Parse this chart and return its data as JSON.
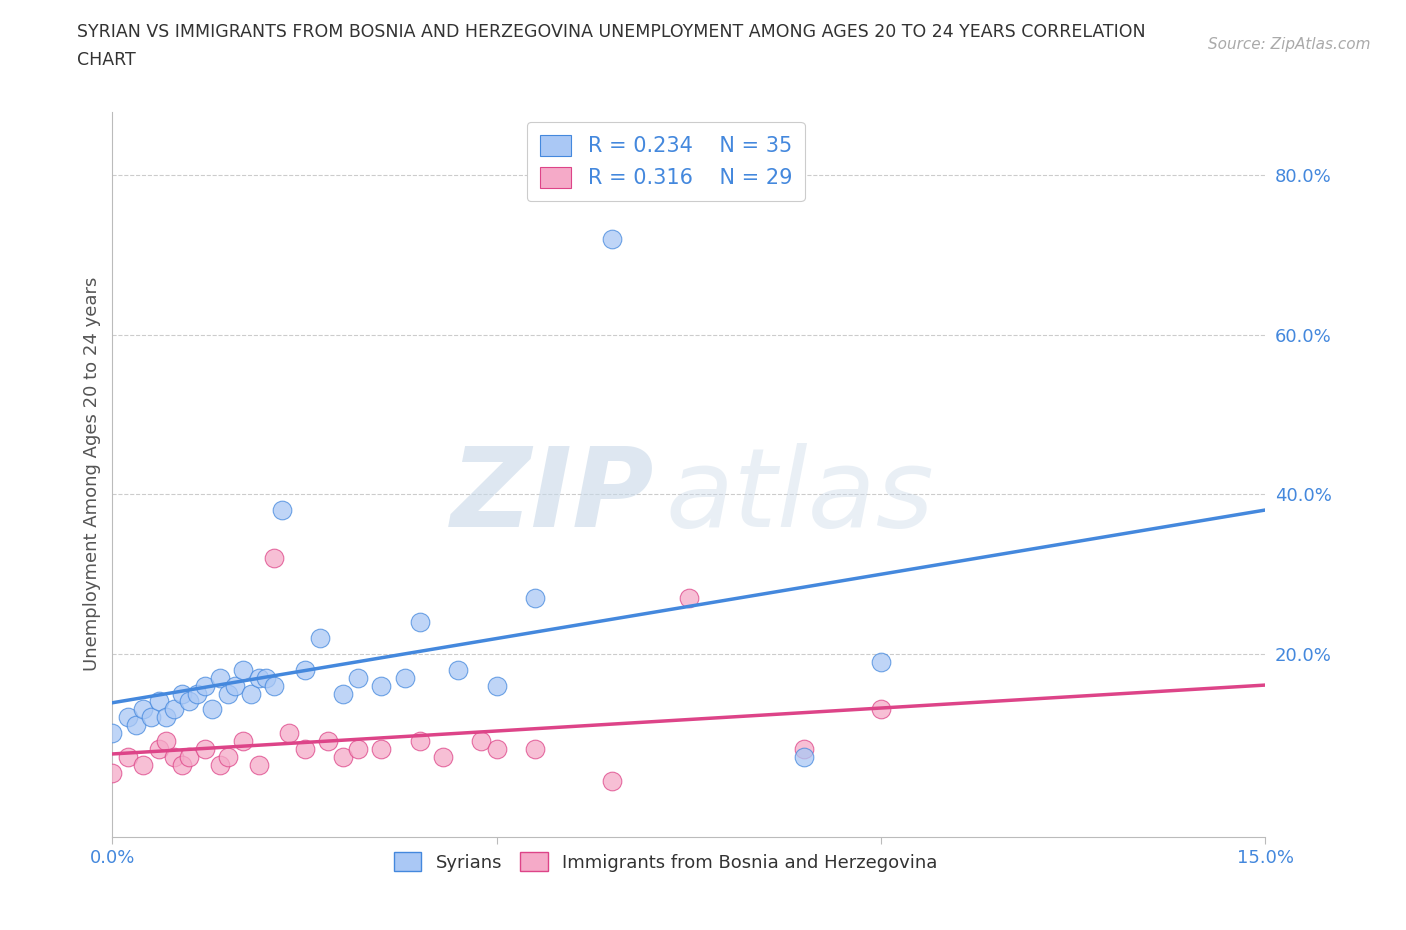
{
  "title_line1": "SYRIAN VS IMMIGRANTS FROM BOSNIA AND HERZEGOVINA UNEMPLOYMENT AMONG AGES 20 TO 24 YEARS CORRELATION",
  "title_line2": "CHART",
  "source_text": "Source: ZipAtlas.com",
  "ylabel": "Unemployment Among Ages 20 to 24 years",
  "xlim": [
    0.0,
    0.15
  ],
  "ylim": [
    -0.03,
    0.88
  ],
  "xticks": [
    0.0,
    0.05,
    0.1,
    0.15
  ],
  "xtick_labels": [
    "0.0%",
    "",
    "",
    "15.0%"
  ],
  "yticks_right": [
    0.0,
    0.2,
    0.4,
    0.6,
    0.8
  ],
  "ytick_labels_right": [
    "",
    "20.0%",
    "40.0%",
    "60.0%",
    "80.0%"
  ],
  "color_syrian": "#aac8f5",
  "color_bosnia": "#f5aac8",
  "line_color_syrian": "#4488dd",
  "line_color_bosnia": "#dd4488",
  "legend_R_syrian": "0.234",
  "legend_N_syrian": "35",
  "legend_R_bosnia": "0.316",
  "legend_N_bosnia": "29",
  "watermark_ZIP": "ZIP",
  "watermark_atlas": "atlas",
  "background_color": "#ffffff",
  "syrian_x": [
    0.0,
    0.002,
    0.003,
    0.004,
    0.005,
    0.006,
    0.007,
    0.008,
    0.009,
    0.01,
    0.011,
    0.012,
    0.013,
    0.014,
    0.015,
    0.016,
    0.017,
    0.018,
    0.019,
    0.02,
    0.021,
    0.022,
    0.025,
    0.027,
    0.03,
    0.032,
    0.035,
    0.038,
    0.04,
    0.045,
    0.05,
    0.055,
    0.065,
    0.09,
    0.1
  ],
  "syrian_y": [
    0.1,
    0.12,
    0.11,
    0.13,
    0.12,
    0.14,
    0.12,
    0.13,
    0.15,
    0.14,
    0.15,
    0.16,
    0.13,
    0.17,
    0.15,
    0.16,
    0.18,
    0.15,
    0.17,
    0.17,
    0.16,
    0.38,
    0.18,
    0.22,
    0.15,
    0.17,
    0.16,
    0.17,
    0.24,
    0.18,
    0.16,
    0.27,
    0.72,
    0.07,
    0.19
  ],
  "bosnia_x": [
    0.0,
    0.002,
    0.004,
    0.006,
    0.007,
    0.008,
    0.009,
    0.01,
    0.012,
    0.014,
    0.015,
    0.017,
    0.019,
    0.021,
    0.023,
    0.025,
    0.028,
    0.03,
    0.032,
    0.035,
    0.04,
    0.043,
    0.048,
    0.05,
    0.055,
    0.065,
    0.075,
    0.09,
    0.1
  ],
  "bosnia_y": [
    0.05,
    0.07,
    0.06,
    0.08,
    0.09,
    0.07,
    0.06,
    0.07,
    0.08,
    0.06,
    0.07,
    0.09,
    0.06,
    0.32,
    0.1,
    0.08,
    0.09,
    0.07,
    0.08,
    0.08,
    0.09,
    0.07,
    0.09,
    0.08,
    0.08,
    0.04,
    0.27,
    0.08,
    0.13
  ],
  "scatter_size": 180,
  "scatter_alpha": 0.75,
  "line_width": 2.5
}
